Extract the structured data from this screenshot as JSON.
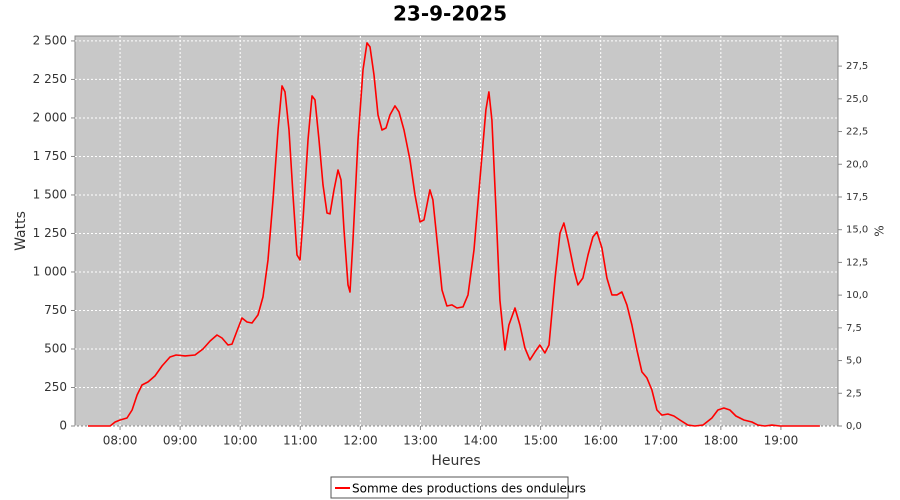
{
  "chart_data": {
    "type": "line",
    "title": "23-9-2025",
    "xlabel": "Heures",
    "ylabel": "Watts",
    "y2label": "%",
    "xlim": [
      7.25,
      19.95
    ],
    "xticks": [
      {
        "value": 8,
        "label": "08:00"
      },
      {
        "value": 9,
        "label": "09:00"
      },
      {
        "value": 10,
        "label": "10:00"
      },
      {
        "value": 11,
        "label": "11:00"
      },
      {
        "value": 12,
        "label": "12:00"
      },
      {
        "value": 13,
        "label": "13:00"
      },
      {
        "value": 14,
        "label": "14:00"
      },
      {
        "value": 15,
        "label": "15:00"
      },
      {
        "value": 16,
        "label": "16:00"
      },
      {
        "value": 17,
        "label": "17:00"
      },
      {
        "value": 18,
        "label": "18:00"
      },
      {
        "value": 19,
        "label": "19:00"
      }
    ],
    "ylim": [
      0,
      2532
    ],
    "yticks": [
      0,
      250,
      500,
      750,
      {
        "value": 1000,
        "label": "1 000"
      },
      {
        "value": 1250,
        "label": "1 250"
      },
      {
        "value": 1500,
        "label": "1 500"
      },
      {
        "value": 1750,
        "label": "1 750"
      },
      {
        "value": 2000,
        "label": "2 000"
      },
      {
        "value": 2250,
        "label": "2 250"
      },
      {
        "value": 2500,
        "label": "2 500"
      }
    ],
    "y2lim": [
      0,
      29.8
    ],
    "y2ticks": [
      {
        "value": 0,
        "label": "0,0"
      },
      {
        "value": 2.5,
        "label": "2,5"
      },
      {
        "value": 5,
        "label": "5,0"
      },
      {
        "value": 7.5,
        "label": "7,5"
      },
      {
        "value": 10,
        "label": "10,0"
      },
      {
        "value": 12.5,
        "label": "12,5"
      },
      {
        "value": 15,
        "label": "15,0"
      },
      {
        "value": 17.5,
        "label": "17,5"
      },
      {
        "value": 20,
        "label": "20,0"
      },
      {
        "value": 22.5,
        "label": "22,5"
      },
      {
        "value": 25,
        "label": "25,0"
      },
      {
        "value": 27.5,
        "label": "27,5"
      }
    ],
    "grid": true,
    "x": [
      7.467,
      7.834,
      7.917,
      8.0,
      8.116,
      8.2,
      8.283,
      8.366,
      8.466,
      8.582,
      8.699,
      8.832,
      8.932,
      9.082,
      9.248,
      9.381,
      9.498,
      9.614,
      9.697,
      9.797,
      9.864,
      9.964,
      10.03,
      10.113,
      10.196,
      10.296,
      10.38,
      10.463,
      10.546,
      10.629,
      10.696,
      10.746,
      10.812,
      10.879,
      10.945,
      10.995,
      11.045,
      11.128,
      11.195,
      11.245,
      11.311,
      11.378,
      11.444,
      11.494,
      11.561,
      11.628,
      11.677,
      11.727,
      11.794,
      11.827,
      11.877,
      11.96,
      12.044,
      12.11,
      12.16,
      12.227,
      12.293,
      12.36,
      12.426,
      12.493,
      12.576,
      12.643,
      12.726,
      12.826,
      12.909,
      12.992,
      13.059,
      13.158,
      13.208,
      13.275,
      13.358,
      13.441,
      13.525,
      13.608,
      13.708,
      13.791,
      13.891,
      13.99,
      14.09,
      14.14,
      14.19,
      14.257,
      14.323,
      14.406,
      14.473,
      14.573,
      14.656,
      14.739,
      14.822,
      14.906,
      14.989,
      15.072,
      15.139,
      15.238,
      15.322,
      15.388,
      15.455,
      15.555,
      15.621,
      15.704,
      15.788,
      15.871,
      15.937,
      16.02,
      16.104,
      16.187,
      16.27,
      16.353,
      16.436,
      16.52,
      16.603,
      16.686,
      16.769,
      16.853,
      16.936,
      17.019,
      17.119,
      17.219,
      17.318,
      17.452,
      17.568,
      17.701,
      17.851,
      17.951,
      18.051,
      18.15,
      18.25,
      18.383,
      18.517,
      18.617,
      18.733,
      18.85,
      18.983,
      19.648
    ],
    "series": [
      {
        "name": "Somme des productions des onduleurs",
        "color": "#ff0000",
        "values": [
          0,
          0,
          26,
          39,
          52,
          104,
          201,
          266,
          286,
          325,
          390,
          448,
          461,
          455,
          461,
          500,
          552,
          591,
          571,
          526,
          532,
          636,
          701,
          675,
          669,
          721,
          838,
          1078,
          1468,
          1922,
          2208,
          2169,
          1922,
          1500,
          1110,
          1078,
          1338,
          1857,
          2143,
          2117,
          1857,
          1565,
          1383,
          1377,
          1533,
          1662,
          1598,
          1273,
          916,
          870,
          1208,
          1857,
          2312,
          2487,
          2461,
          2279,
          2020,
          1922,
          1935,
          2020,
          2078,
          2039,
          1922,
          1727,
          1500,
          1325,
          1338,
          1533,
          1468,
          1208,
          883,
          779,
          786,
          766,
          773,
          851,
          1143,
          1598,
          2052,
          2169,
          1987,
          1403,
          818,
          494,
          656,
          766,
          656,
          507,
          429,
          481,
          526,
          474,
          526,
          948,
          1253,
          1318,
          1208,
          1013,
          916,
          961,
          1110,
          1227,
          1260,
          1156,
          961,
          851,
          851,
          870,
          786,
          656,
          494,
          351,
          312,
          234,
          104,
          71,
          78,
          65,
          39,
          6,
          0,
          6,
          52,
          104,
          117,
          104,
          65,
          39,
          26,
          6,
          0,
          6,
          0,
          0
        ]
      }
    ]
  }
}
